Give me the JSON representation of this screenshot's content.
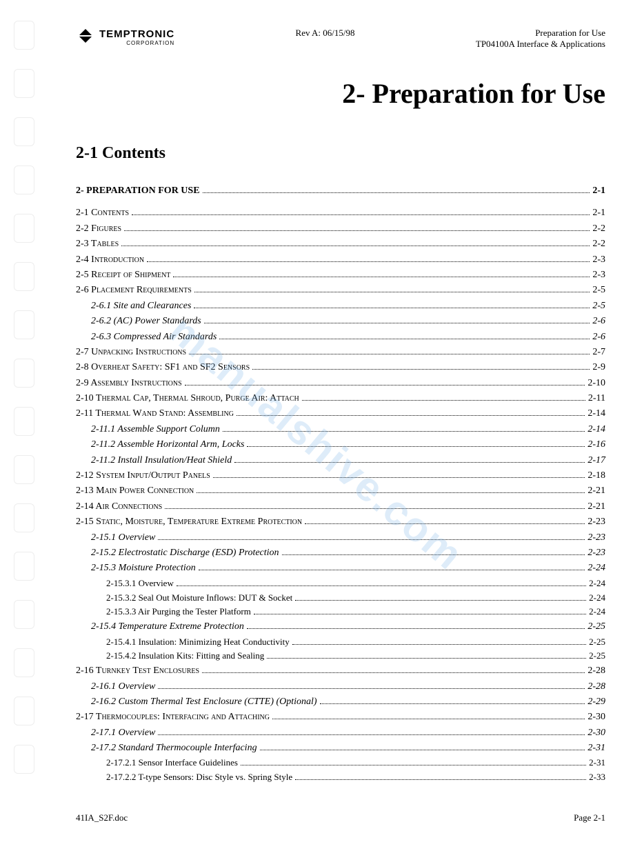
{
  "header": {
    "brand": "TEMPTRONIC",
    "corp": "CORPORATION",
    "center": "Rev A: 06/15/98",
    "right_line1": "Preparation for Use",
    "right_line2": "TP04100A Interface & Applications"
  },
  "watermark": "manualshive.com",
  "chapter_title": "2- Preparation for Use",
  "section_title": "2-1 Contents",
  "toc": [
    {
      "level": 0,
      "label": "2- PREPARATION FOR USE",
      "page": "2-1",
      "sc": false,
      "spacer_after": true
    },
    {
      "level": 1,
      "label": "2-1 Contents",
      "page": "2-1",
      "sc": true
    },
    {
      "level": 1,
      "label": "2-2 Figures",
      "page": "2-2",
      "sc": true
    },
    {
      "level": 1,
      "label": "2-3 Tables",
      "page": "2-2",
      "sc": true
    },
    {
      "level": 1,
      "label": "2-4 Introduction",
      "page": "2-3",
      "sc": true
    },
    {
      "level": 1,
      "label": "2-5 Receipt of Shipment",
      "page": "2-3",
      "sc": true
    },
    {
      "level": 1,
      "label": "2-6 Placement Requirements",
      "page": "2-5",
      "sc": true
    },
    {
      "level": 2,
      "label": "2-6.1 Site and Clearances",
      "page": "2-5"
    },
    {
      "level": 2,
      "label": "2-6.2 (AC) Power Standards",
      "page": "2-6"
    },
    {
      "level": 2,
      "label": "2-6.3 Compressed Air Standards",
      "page": "2-6"
    },
    {
      "level": 1,
      "label": "2-7 Unpacking Instructions",
      "page": "2-7",
      "sc": true
    },
    {
      "level": 1,
      "label": "2-8 Overheat Safety: SF1 and SF2 Sensors",
      "page": "2-9",
      "sc": true
    },
    {
      "level": 1,
      "label": "2-9 Assembly Instructions",
      "page": "2-10",
      "sc": true
    },
    {
      "level": 1,
      "label": "2-10 Thermal Cap, Thermal Shroud, Purge Air: Attach",
      "page": "2-11",
      "sc": true
    },
    {
      "level": 1,
      "label": "2-11 Thermal Wand Stand: Assembling",
      "page": "2-14",
      "sc": true
    },
    {
      "level": 2,
      "label": "2-11.1 Assemble Support Column",
      "page": "2-14"
    },
    {
      "level": 2,
      "label": "2-11.2 Assemble Horizontal Arm, Locks",
      "page": "2-16"
    },
    {
      "level": 2,
      "label": "2-11.2 Install Insulation/Heat Shield",
      "page": "2-17"
    },
    {
      "level": 1,
      "label": "2-12 System Input/Output Panels",
      "page": "2-18",
      "sc": true
    },
    {
      "level": 1,
      "label": "2-13 Main Power Connection",
      "page": "2-21",
      "sc": true
    },
    {
      "level": 1,
      "label": "2-14 Air Connections",
      "page": "2-21",
      "sc": true
    },
    {
      "level": 1,
      "label": "2-15 Static, Moisture, Temperature Extreme Protection",
      "page": "2-23",
      "sc": true
    },
    {
      "level": 2,
      "label": "2-15.1 Overview",
      "page": "2-23"
    },
    {
      "level": 2,
      "label": "2-15.2 Electrostatic Discharge (ESD) Protection",
      "page": "2-23"
    },
    {
      "level": 2,
      "label": "2-15.3 Moisture Protection",
      "page": "2-24"
    },
    {
      "level": 3,
      "label": "2-15.3.1 Overview",
      "page": "2-24"
    },
    {
      "level": 3,
      "label": "2-15.3.2 Seal Out Moisture Inflows: DUT & Socket",
      "page": "2-24"
    },
    {
      "level": 3,
      "label": "2-15.3.3 Air Purging the Tester Platform",
      "page": "2-24"
    },
    {
      "level": 2,
      "label": "2-15.4 Temperature Extreme Protection",
      "page": "2-25"
    },
    {
      "level": 3,
      "label": "2-15.4.1 Insulation: Minimizing Heat Conductivity",
      "page": "2-25"
    },
    {
      "level": 3,
      "label": "2-15.4.2 Insulation Kits: Fitting and Sealing",
      "page": "2-25"
    },
    {
      "level": 1,
      "label": "2-16 Turnkey Test Enclosures",
      "page": "2-28",
      "sc": true
    },
    {
      "level": 2,
      "label": "2-16.1 Overview",
      "page": "2-28"
    },
    {
      "level": 2,
      "label": "2-16.2 Custom Thermal Test Enclosure (CTTE) (Optional)",
      "page": "2-29"
    },
    {
      "level": 1,
      "label": "2-17 Thermocouples: Interfacing and Attaching",
      "page": "2-30",
      "sc": true
    },
    {
      "level": 2,
      "label": "2-17.1 Overview",
      "page": "2-30"
    },
    {
      "level": 2,
      "label": "2-17.2 Standard Thermocouple Interfacing",
      "page": "2-31"
    },
    {
      "level": 3,
      "label": "2-17.2.1 Sensor Interface Guidelines",
      "page": "2-31"
    },
    {
      "level": 3,
      "label": "2-17.2.2 T-type Sensors: Disc Style vs. Spring Style",
      "page": "2-33"
    }
  ],
  "footer": {
    "left": "41IA_S2F.doc",
    "right": "Page 2-1"
  }
}
